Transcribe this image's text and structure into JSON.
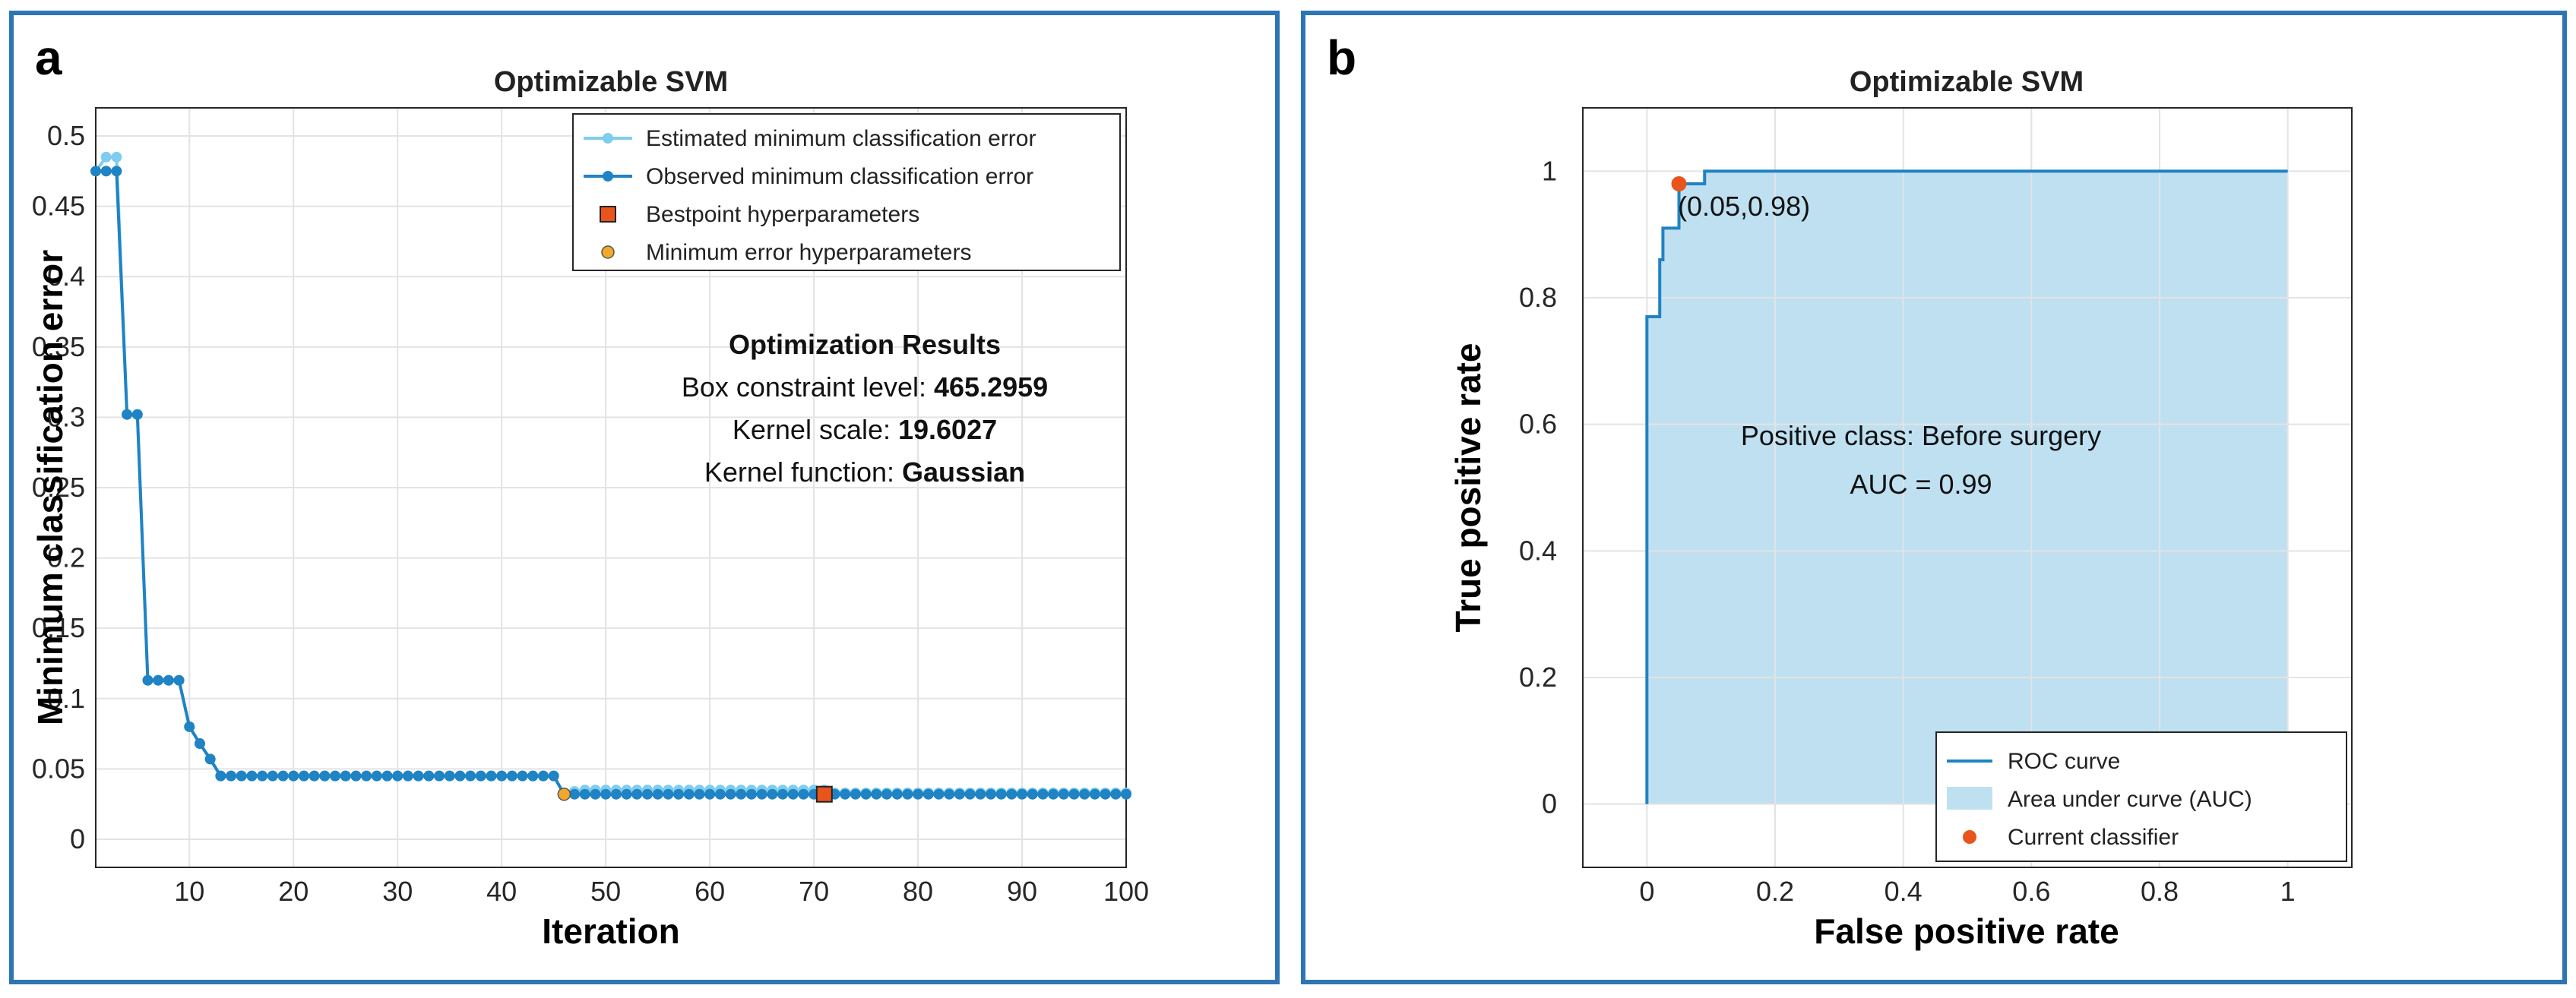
{
  "chart_data": [
    {
      "panel_label": "a",
      "type": "line",
      "title": "Optimizable SVM",
      "xlabel": "Iteration",
      "ylabel": "Minimum classification error",
      "xlim": [
        1,
        100
      ],
      "ylim": [
        -0.02,
        0.52
      ],
      "xticks": [
        10,
        20,
        30,
        40,
        50,
        60,
        70,
        80,
        90,
        100
      ],
      "yticks": [
        0,
        0.05,
        0.1,
        0.15,
        0.2,
        0.25,
        0.3,
        0.35,
        0.4,
        0.45,
        0.5
      ],
      "grid": true,
      "legend_position": "top-right",
      "legend": [
        "Estimated minimum classification error",
        "Observed minimum classification error",
        "Bestpoint hyperparameters",
        "Minimum error hyperparameters"
      ],
      "series": [
        {
          "name": "Estimated minimum classification error",
          "color": "#7fcdee",
          "values": [
            0.475,
            0.485,
            0.485,
            0.302,
            0.302,
            0.113,
            0.113,
            0.113,
            0.113,
            0.08,
            0.068,
            0.057,
            0.045,
            0.045,
            0.045,
            0.045,
            0.045,
            0.045,
            0.045,
            0.045,
            0.045,
            0.045,
            0.045,
            0.045,
            0.045,
            0.045,
            0.045,
            0.045,
            0.045,
            0.045,
            0.045,
            0.045,
            0.045,
            0.045,
            0.045,
            0.045,
            0.045,
            0.045,
            0.045,
            0.045,
            0.045,
            0.045,
            0.045,
            0.045,
            0.045,
            0.032,
            0.034,
            0.035,
            0.035,
            0.035,
            0.035,
            0.035,
            0.035,
            0.035,
            0.035,
            0.035,
            0.035,
            0.035,
            0.035,
            0.035,
            0.035,
            0.035,
            0.035,
            0.035,
            0.035,
            0.035,
            0.035,
            0.035,
            0.035,
            0.035,
            0.035,
            0.033,
            0.033,
            0.033,
            0.033,
            0.033,
            0.033,
            0.033,
            0.033,
            0.033,
            0.033,
            0.033,
            0.033,
            0.033,
            0.033,
            0.033,
            0.033,
            0.033,
            0.033,
            0.033,
            0.033,
            0.033,
            0.033,
            0.033,
            0.033,
            0.033,
            0.033,
            0.033,
            0.033,
            0.033
          ]
        },
        {
          "name": "Observed minimum classification error",
          "color": "#1f83c4",
          "values": [
            0.475,
            0.475,
            0.475,
            0.302,
            0.302,
            0.113,
            0.113,
            0.113,
            0.113,
            0.08,
            0.068,
            0.057,
            0.045,
            0.045,
            0.045,
            0.045,
            0.045,
            0.045,
            0.045,
            0.045,
            0.045,
            0.045,
            0.045,
            0.045,
            0.045,
            0.045,
            0.045,
            0.045,
            0.045,
            0.045,
            0.045,
            0.045,
            0.045,
            0.045,
            0.045,
            0.045,
            0.045,
            0.045,
            0.045,
            0.045,
            0.045,
            0.045,
            0.045,
            0.045,
            0.045,
            0.032,
            0.032,
            0.032,
            0.032,
            0.032,
            0.032,
            0.032,
            0.032,
            0.032,
            0.032,
            0.032,
            0.032,
            0.032,
            0.032,
            0.032,
            0.032,
            0.032,
            0.032,
            0.032,
            0.032,
            0.032,
            0.032,
            0.032,
            0.032,
            0.032,
            0.032,
            0.032,
            0.032,
            0.032,
            0.032,
            0.032,
            0.032,
            0.032,
            0.032,
            0.032,
            0.032,
            0.032,
            0.032,
            0.032,
            0.032,
            0.032,
            0.032,
            0.032,
            0.032,
            0.032,
            0.032,
            0.032,
            0.032,
            0.032,
            0.032,
            0.032,
            0.032,
            0.032,
            0.032,
            0.032
          ]
        }
      ],
      "bestpoint": {
        "x": 71,
        "y": 0.032,
        "color": "#e8541b"
      },
      "min_error_point": {
        "x": 46,
        "y": 0.032,
        "color": "#f0a92c"
      },
      "results": {
        "heading": "Optimization Results",
        "box_label": "Box constraint level: ",
        "box_value": "465.2959",
        "scale_label": "Kernel scale: ",
        "scale_value": "19.6027",
        "function_label": "Kernel function: ",
        "function_value": "Gaussian"
      }
    },
    {
      "panel_label": "b",
      "type": "line",
      "title": "Optimizable SVM",
      "xlabel": "False positive rate",
      "ylabel": "True positive rate",
      "xlim": [
        -0.1,
        1.1
      ],
      "ylim": [
        -0.1,
        1.1
      ],
      "xticks": [
        0,
        0.2,
        0.4,
        0.6,
        0.8,
        1
      ],
      "yticks": [
        0,
        0.2,
        0.4,
        0.6,
        0.8,
        1
      ],
      "grid": true,
      "legend_position": "bottom-right",
      "legend": [
        "ROC curve",
        "Area under curve (AUC)",
        "Current classifier"
      ],
      "roc": {
        "color": "#1f83c4",
        "area_color": "#bfe0f1",
        "x": [
          0,
          0,
          0.02,
          0.02,
          0.025,
          0.025,
          0.05,
          0.05,
          0.09,
          0.09,
          1
        ],
        "y": [
          0,
          0.77,
          0.77,
          0.86,
          0.86,
          0.91,
          0.91,
          0.98,
          0.98,
          1,
          1
        ]
      },
      "current_classifier": {
        "x": 0.05,
        "y": 0.98,
        "label": "(0.05,0.98)",
        "color": "#e8541b"
      },
      "positive_class": "Positive class: Before surgery",
      "auc_label": "AUC = 0.99",
      "tick_labels": [
        "0",
        "0.2",
        "0.4",
        "0.6",
        "0.8",
        "1"
      ]
    }
  ]
}
